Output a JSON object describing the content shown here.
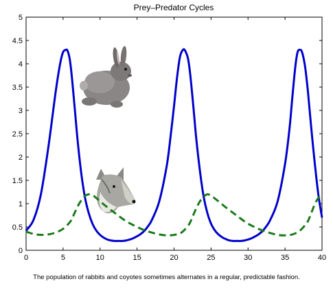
{
  "chart_data": {
    "type": "line",
    "title": "Prey–Predator Cycles",
    "xlabel": "",
    "ylabel": "",
    "xlim": [
      0,
      40
    ],
    "ylim": [
      0,
      5
    ],
    "x_ticks": [
      0,
      5,
      10,
      15,
      20,
      25,
      30,
      35,
      40
    ],
    "y_ticks": [
      0,
      0.5,
      1,
      1.5,
      2,
      2.5,
      3,
      3.5,
      4,
      4.5,
      5
    ],
    "y_tick_labels": [
      "0",
      "0.5",
      "1",
      "1.5",
      "2",
      "2.5",
      "3",
      "3.5",
      "4",
      "4.5",
      "5"
    ],
    "grid": false,
    "series": [
      {
        "style": "solid",
        "color": "#0000cc",
        "x": [
          0,
          1,
          2,
          3,
          4,
          4.6,
          5,
          5.4,
          5.6,
          5.9,
          6.2,
          6.6,
          7,
          7.5,
          8,
          8.5,
          9,
          9.5,
          10,
          10.5,
          11,
          11.5,
          12,
          12.5,
          13,
          13.5,
          14,
          14.5,
          15,
          15.5,
          16,
          16.5,
          17,
          18,
          19,
          19.5,
          20,
          20.4,
          20.8,
          21.2,
          21.5,
          21.9,
          22.2,
          22.6,
          23,
          23.5,
          24,
          24.5,
          25,
          25.5,
          26,
          26.5,
          27,
          27.5,
          28,
          28.5,
          29,
          29.5,
          30,
          30.5,
          31,
          31.5,
          32,
          32.5,
          33,
          34,
          35,
          35.6,
          36,
          36.4,
          36.7,
          37,
          37.3,
          37.7,
          38.1,
          38.5,
          39,
          39.5,
          40
        ],
        "y": [
          0.42,
          0.65,
          1.2,
          2.2,
          3.4,
          4.0,
          4.25,
          4.3,
          4.28,
          4.1,
          3.7,
          3.0,
          2.3,
          1.6,
          1.1,
          0.78,
          0.56,
          0.42,
          0.33,
          0.27,
          0.23,
          0.21,
          0.2,
          0.2,
          0.2,
          0.21,
          0.23,
          0.26,
          0.3,
          0.35,
          0.42,
          0.52,
          0.65,
          1.05,
          1.8,
          2.4,
          3.1,
          3.7,
          4.15,
          4.3,
          4.28,
          4.1,
          3.75,
          3.1,
          2.4,
          1.7,
          1.15,
          0.8,
          0.57,
          0.43,
          0.34,
          0.28,
          0.24,
          0.21,
          0.2,
          0.2,
          0.2,
          0.21,
          0.23,
          0.26,
          0.3,
          0.35,
          0.42,
          0.52,
          0.65,
          1.05,
          1.85,
          2.6,
          3.3,
          3.95,
          4.25,
          4.3,
          4.25,
          3.95,
          3.4,
          2.7,
          1.9,
          1.2,
          0.7
        ]
      },
      {
        "style": "dashed",
        "color": "#1a7a1a",
        "x": [
          0,
          1,
          2,
          3,
          4,
          5,
          6,
          6.5,
          7,
          7.5,
          8,
          8.5,
          9,
          9.5,
          10,
          11,
          12,
          13,
          14,
          15,
          16,
          17,
          18,
          19,
          20,
          21,
          22,
          22.5,
          23,
          23.5,
          24,
          24.5,
          25,
          26,
          27,
          28,
          29,
          30,
          31,
          32,
          33,
          34,
          35,
          36,
          37,
          38,
          38.5,
          39,
          39.5,
          40
        ],
        "y": [
          0.4,
          0.35,
          0.33,
          0.34,
          0.38,
          0.46,
          0.62,
          0.78,
          0.95,
          1.08,
          1.17,
          1.2,
          1.18,
          1.12,
          1.05,
          0.92,
          0.8,
          0.68,
          0.58,
          0.5,
          0.43,
          0.38,
          0.34,
          0.32,
          0.33,
          0.38,
          0.55,
          0.72,
          0.9,
          1.05,
          1.15,
          1.2,
          1.17,
          1.05,
          0.92,
          0.8,
          0.68,
          0.57,
          0.49,
          0.42,
          0.37,
          0.33,
          0.32,
          0.34,
          0.42,
          0.6,
          0.78,
          0.98,
          1.12,
          1.18
        ]
      }
    ],
    "images": [
      {
        "name": "rabbit-image",
        "depicts": "rabbit"
      },
      {
        "name": "coyote-image",
        "depicts": "coyote"
      }
    ]
  },
  "caption": "The population of rabbits and coyotes sometimes alternates in a regular, predictable fashion."
}
